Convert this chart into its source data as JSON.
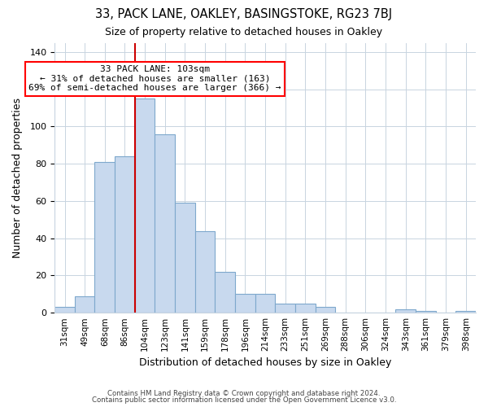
{
  "title": "33, PACK LANE, OAKLEY, BASINGSTOKE, RG23 7BJ",
  "subtitle": "Size of property relative to detached houses in Oakley",
  "xlabel": "Distribution of detached houses by size in Oakley",
  "ylabel": "Number of detached properties",
  "bar_labels": [
    "31sqm",
    "49sqm",
    "68sqm",
    "86sqm",
    "104sqm",
    "123sqm",
    "141sqm",
    "159sqm",
    "178sqm",
    "196sqm",
    "214sqm",
    "233sqm",
    "251sqm",
    "269sqm",
    "288sqm",
    "306sqm",
    "324sqm",
    "343sqm",
    "361sqm",
    "379sqm",
    "398sqm"
  ],
  "bar_values": [
    3,
    9,
    81,
    84,
    115,
    96,
    59,
    44,
    22,
    10,
    10,
    5,
    5,
    3,
    0,
    0,
    0,
    2,
    1,
    0,
    1
  ],
  "bar_color": "#c8d9ee",
  "bar_edge_color": "#7ea8cc",
  "vline_color": "#cc0000",
  "annotation_title": "33 PACK LANE: 103sqm",
  "annotation_line1": "← 31% of detached houses are smaller (163)",
  "annotation_line2": "69% of semi-detached houses are larger (366) →",
  "ylim": [
    0,
    145
  ],
  "yticks": [
    0,
    20,
    40,
    60,
    80,
    100,
    120,
    140
  ],
  "footer1": "Contains HM Land Registry data © Crown copyright and database right 2024.",
  "footer2": "Contains public sector information licensed under the Open Government Licence v3.0.",
  "background_color": "#ffffff",
  "grid_color": "#c8d4e0"
}
